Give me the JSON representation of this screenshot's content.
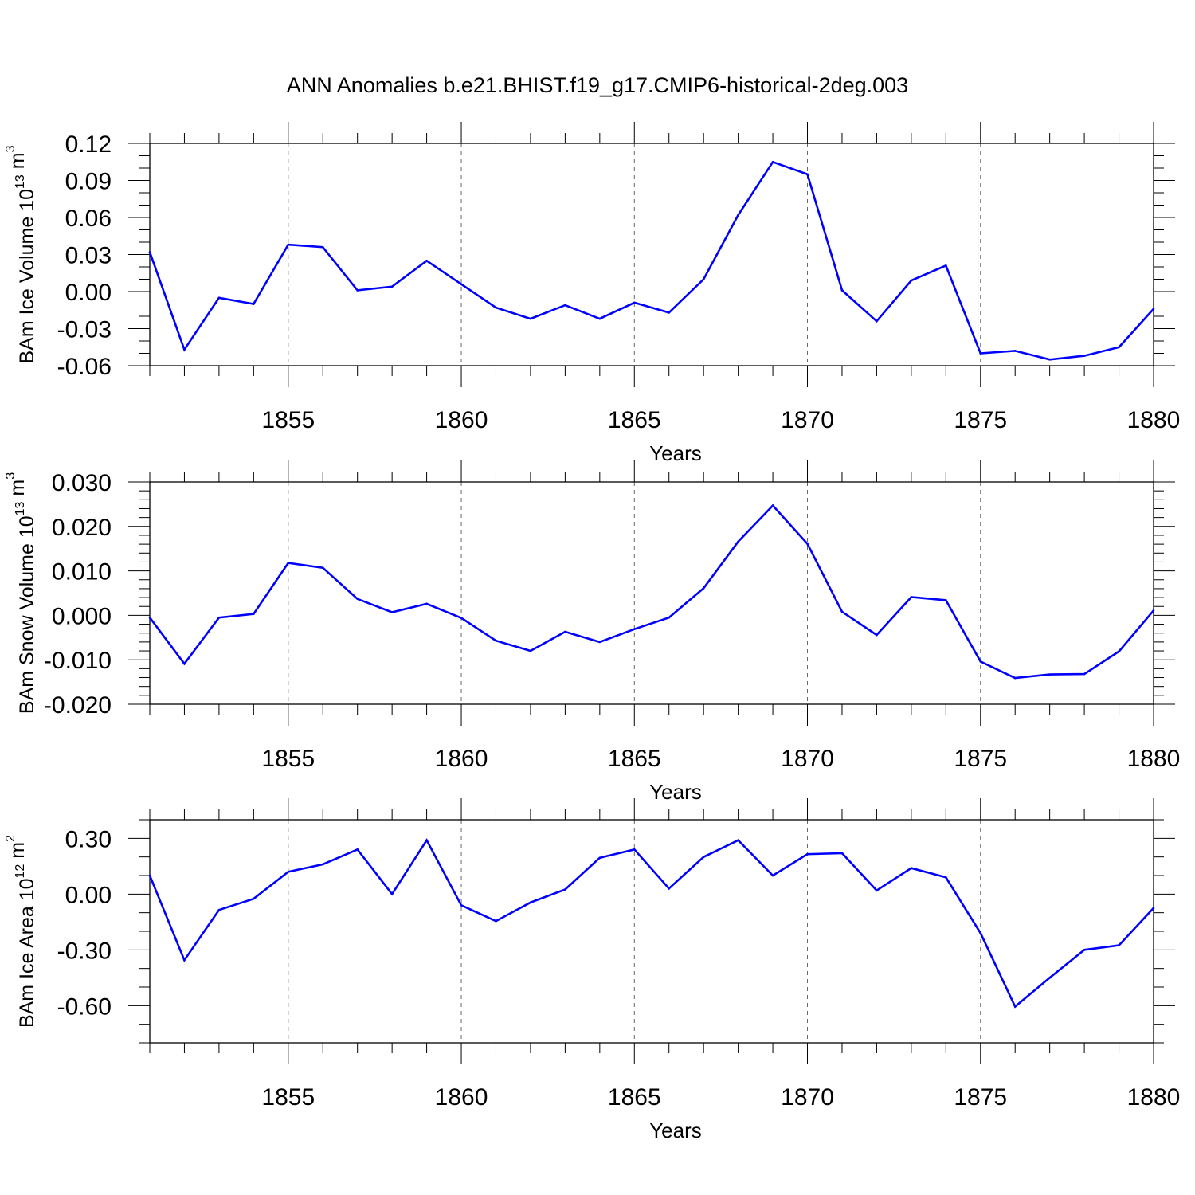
{
  "title": "ANN Anomalies b.e21.BHIST.f19_g17.CMIP6-historical-2deg.003",
  "colors": {
    "series": "#0000ff",
    "axis": "#000000",
    "grid": "#666666"
  },
  "chart_data": [
    {
      "type": "line",
      "ylabel": {
        "prefix": "BAm Ice Volume 10",
        "exp": "13",
        "suffix": " m",
        "unit_exp": "3"
      },
      "xlabel": "Years",
      "xlim": [
        1851,
        1880
      ],
      "ylim": [
        -0.06,
        0.12
      ],
      "yticks": [
        "0.12",
        "0.09",
        "0.06",
        "0.03",
        "0.00",
        "-0.03",
        "-0.06"
      ],
      "ytick_values": [
        0.12,
        0.09,
        0.06,
        0.03,
        0.0,
        -0.03,
        -0.06
      ],
      "yminor_step": 0.01,
      "xticks": [
        "1855",
        "1860",
        "1865",
        "1870",
        "1875",
        "1880"
      ],
      "xtick_values": [
        1855,
        1860,
        1865,
        1870,
        1875,
        1880
      ],
      "grid": "dashed vertical at major x ticks",
      "x": [
        1851,
        1852,
        1853,
        1854,
        1855,
        1856,
        1857,
        1858,
        1859,
        1860,
        1861,
        1862,
        1863,
        1864,
        1865,
        1866,
        1867,
        1868,
        1869,
        1870,
        1871,
        1872,
        1873,
        1874,
        1875,
        1876,
        1877,
        1878,
        1879,
        1880
      ],
      "y": [
        0.032,
        -0.047,
        -0.005,
        -0.01,
        0.038,
        0.036,
        0.001,
        0.004,
        0.025,
        0.006,
        -0.013,
        -0.022,
        -0.011,
        -0.022,
        -0.009,
        -0.017,
        0.01,
        0.062,
        0.105,
        0.095,
        0.001,
        -0.024,
        0.009,
        0.021,
        -0.05,
        -0.048,
        -0.055,
        -0.052,
        -0.045,
        -0.014
      ]
    },
    {
      "type": "line",
      "ylabel": {
        "prefix": "BAm Snow Volume 10",
        "exp": "13",
        "suffix": " m",
        "unit_exp": "3"
      },
      "xlabel": "Years",
      "xlim": [
        1851,
        1880
      ],
      "ylim": [
        -0.02,
        0.03
      ],
      "yticks": [
        "0.030",
        "0.020",
        "0.010",
        "0.000",
        "-0.010",
        "-0.020"
      ],
      "ytick_values": [
        0.03,
        0.02,
        0.01,
        0.0,
        -0.01,
        -0.02
      ],
      "yminor_step": 0.002,
      "xticks": [
        "1855",
        "1860",
        "1865",
        "1870",
        "1875",
        "1880"
      ],
      "xtick_values": [
        1855,
        1860,
        1865,
        1870,
        1875,
        1880
      ],
      "grid": "dashed vertical at major x ticks",
      "x": [
        1851,
        1852,
        1853,
        1854,
        1855,
        1856,
        1857,
        1858,
        1859,
        1860,
        1861,
        1862,
        1863,
        1864,
        1865,
        1866,
        1867,
        1868,
        1869,
        1870,
        1871,
        1872,
        1873,
        1874,
        1875,
        1876,
        1877,
        1878,
        1879,
        1880
      ],
      "y": [
        -0.0005,
        -0.0109,
        -0.0005,
        0.0003,
        0.0118,
        0.0107,
        0.0037,
        0.0007,
        0.0026,
        -0.0006,
        -0.0057,
        -0.008,
        -0.0037,
        -0.006,
        -0.0031,
        -0.0005,
        0.0061,
        0.0166,
        0.0247,
        0.0161,
        0.0008,
        -0.0044,
        0.0041,
        0.0034,
        -0.0104,
        -0.0141,
        -0.0133,
        -0.0132,
        -0.0081,
        0.0011
      ]
    },
    {
      "type": "line",
      "ylabel": {
        "prefix": "BAm Ice Area 10",
        "exp": "12",
        "suffix": " m",
        "unit_exp": "2"
      },
      "xlabel": "Years",
      "xlim": [
        1851,
        1880
      ],
      "ylim": [
        -0.8,
        0.4
      ],
      "yticks": [
        "0.30",
        "0.00",
        "-0.30",
        "-0.60"
      ],
      "ytick_values": [
        0.3,
        0.0,
        -0.3,
        -0.6
      ],
      "yminor_step": 0.1,
      "xticks": [
        "1855",
        "1860",
        "1865",
        "1870",
        "1875",
        "1880"
      ],
      "xtick_values": [
        1855,
        1860,
        1865,
        1870,
        1875,
        1880
      ],
      "grid": "dashed vertical at major x ticks",
      "x": [
        1851,
        1852,
        1853,
        1854,
        1855,
        1856,
        1857,
        1858,
        1859,
        1860,
        1861,
        1862,
        1863,
        1864,
        1865,
        1866,
        1867,
        1868,
        1869,
        1870,
        1871,
        1872,
        1873,
        1874,
        1875,
        1876,
        1877,
        1878,
        1879,
        1880
      ],
      "y": [
        0.1,
        -0.355,
        -0.085,
        -0.025,
        0.12,
        0.16,
        0.24,
        0.0,
        0.29,
        -0.06,
        -0.145,
        -0.045,
        0.025,
        0.195,
        0.24,
        0.03,
        0.2,
        0.29,
        0.1,
        0.215,
        0.22,
        0.02,
        0.14,
        0.09,
        -0.21,
        -0.605,
        -0.45,
        -0.3,
        -0.275,
        -0.075
      ]
    }
  ]
}
